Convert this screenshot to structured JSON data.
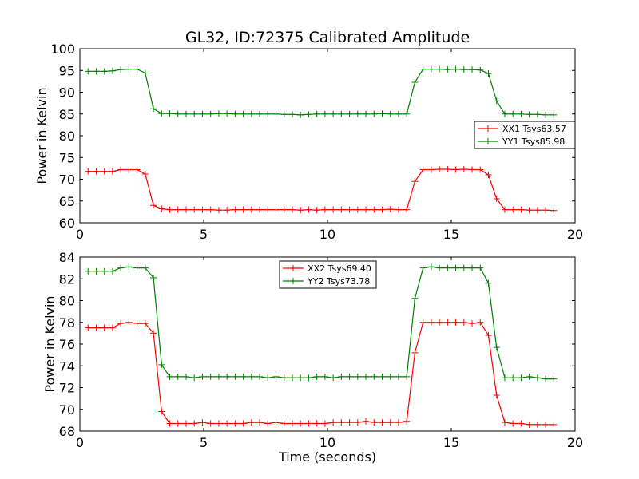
{
  "figure": {
    "title": "GL32, ID:72375 Calibrated Amplitude",
    "xlabel": "Time (seconds)"
  },
  "chart_data": [
    {
      "type": "line",
      "title": "GL32, ID:72375 Calibrated Amplitude",
      "xlabel": "",
      "ylabel": "Power in Kelvin",
      "xlim": [
        0,
        20
      ],
      "ylim": [
        60,
        100
      ],
      "xticks": [
        0,
        5,
        10,
        15,
        20
      ],
      "yticks": [
        60,
        65,
        70,
        75,
        80,
        85,
        90,
        95,
        100
      ],
      "grid": false,
      "legend_position": "right",
      "x": [
        0.33,
        0.66,
        0.99,
        1.32,
        1.65,
        1.98,
        2.31,
        2.64,
        2.97,
        3.3,
        3.63,
        3.96,
        4.29,
        4.62,
        4.95,
        5.28,
        5.61,
        5.94,
        6.27,
        6.6,
        6.93,
        7.26,
        7.59,
        7.92,
        8.25,
        8.58,
        8.91,
        9.24,
        9.57,
        9.9,
        10.23,
        10.56,
        10.89,
        11.22,
        11.55,
        11.88,
        12.21,
        12.54,
        12.87,
        13.2,
        13.53,
        13.86,
        14.19,
        14.52,
        14.85,
        15.18,
        15.51,
        15.84,
        16.17,
        16.5,
        16.83,
        17.16,
        17.49,
        17.82,
        18.15,
        18.48,
        18.81,
        19.14
      ],
      "series": [
        {
          "name": "XX1 Tsys63.57",
          "color": "#ff0000",
          "values": [
            71.8,
            71.8,
            71.8,
            71.8,
            72.2,
            72.2,
            72.2,
            71.2,
            64.0,
            63.2,
            63.0,
            63.0,
            63.0,
            63.0,
            63.0,
            63.0,
            62.9,
            62.9,
            63.0,
            63.0,
            63.0,
            63.0,
            63.0,
            63.0,
            63.0,
            63.0,
            62.9,
            63.0,
            62.9,
            63.0,
            63.0,
            63.0,
            63.0,
            63.0,
            63.0,
            63.0,
            63.0,
            63.1,
            63.0,
            63.0,
            69.5,
            72.2,
            72.2,
            72.3,
            72.3,
            72.2,
            72.3,
            72.2,
            72.2,
            71.0,
            65.5,
            63.0,
            63.0,
            63.0,
            62.9,
            62.9,
            62.9,
            62.8
          ]
        },
        {
          "name": "YY1 Tsys85.98",
          "color": "#008000",
          "values": [
            94.8,
            94.8,
            94.8,
            94.9,
            95.2,
            95.3,
            95.3,
            94.4,
            86.2,
            85.1,
            85.1,
            85.0,
            85.0,
            85.0,
            85.0,
            85.0,
            85.1,
            85.1,
            85.0,
            85.0,
            85.0,
            85.0,
            85.0,
            85.0,
            84.9,
            84.9,
            84.8,
            84.9,
            85.0,
            85.0,
            85.0,
            85.0,
            85.0,
            85.0,
            85.0,
            85.0,
            85.1,
            85.0,
            85.0,
            85.0,
            92.3,
            95.3,
            95.3,
            95.3,
            95.2,
            95.3,
            95.2,
            95.2,
            95.1,
            94.3,
            88.0,
            85.0,
            85.0,
            85.0,
            84.9,
            84.9,
            84.8,
            84.8
          ]
        }
      ]
    },
    {
      "type": "line",
      "title": "",
      "xlabel": "Time (seconds)",
      "ylabel": "Power in Kelvin",
      "xlim": [
        0,
        20
      ],
      "ylim": [
        68,
        84
      ],
      "xticks": [
        0,
        5,
        10,
        15,
        20
      ],
      "yticks": [
        68,
        70,
        72,
        74,
        76,
        78,
        80,
        82,
        84
      ],
      "grid": false,
      "legend_position": "top-center",
      "x": [
        0.33,
        0.66,
        0.99,
        1.32,
        1.65,
        1.98,
        2.31,
        2.64,
        2.97,
        3.3,
        3.63,
        3.96,
        4.29,
        4.62,
        4.95,
        5.28,
        5.61,
        5.94,
        6.27,
        6.6,
        6.93,
        7.26,
        7.59,
        7.92,
        8.25,
        8.58,
        8.91,
        9.24,
        9.57,
        9.9,
        10.23,
        10.56,
        10.89,
        11.22,
        11.55,
        11.88,
        12.21,
        12.54,
        12.87,
        13.2,
        13.53,
        13.86,
        14.19,
        14.52,
        14.85,
        15.18,
        15.51,
        15.84,
        16.17,
        16.5,
        16.83,
        17.16,
        17.49,
        17.82,
        18.15,
        18.48,
        18.81,
        19.14
      ],
      "series": [
        {
          "name": "XX2 Tsys69.40",
          "color": "#ff0000",
          "values": [
            77.5,
            77.5,
            77.5,
            77.5,
            77.9,
            78.0,
            77.9,
            77.9,
            77.0,
            69.8,
            68.7,
            68.7,
            68.7,
            68.7,
            68.8,
            68.7,
            68.7,
            68.7,
            68.7,
            68.7,
            68.8,
            68.8,
            68.7,
            68.8,
            68.7,
            68.7,
            68.7,
            68.7,
            68.7,
            68.7,
            68.8,
            68.8,
            68.8,
            68.8,
            68.9,
            68.8,
            68.8,
            68.8,
            68.8,
            68.9,
            75.2,
            78.0,
            78.0,
            78.0,
            78.0,
            78.0,
            78.0,
            77.9,
            78.0,
            76.8,
            71.3,
            68.8,
            68.7,
            68.7,
            68.6,
            68.6,
            68.6,
            68.6
          ]
        },
        {
          "name": "YY2 Tsys73.78",
          "color": "#008000",
          "values": [
            82.7,
            82.7,
            82.7,
            82.7,
            83.0,
            83.1,
            83.0,
            83.0,
            82.1,
            74.1,
            73.0,
            73.0,
            73.0,
            72.9,
            73.0,
            73.0,
            73.0,
            73.0,
            73.0,
            73.0,
            73.0,
            73.0,
            72.9,
            73.0,
            72.9,
            72.9,
            72.9,
            72.9,
            73.0,
            73.0,
            72.9,
            73.0,
            73.0,
            73.0,
            73.0,
            73.0,
            73.0,
            73.0,
            73.0,
            73.0,
            80.2,
            83.0,
            83.1,
            83.0,
            83.0,
            83.0,
            83.0,
            83.0,
            83.0,
            81.6,
            75.7,
            72.9,
            72.9,
            72.9,
            73.0,
            72.9,
            72.8,
            72.8
          ]
        }
      ]
    }
  ]
}
